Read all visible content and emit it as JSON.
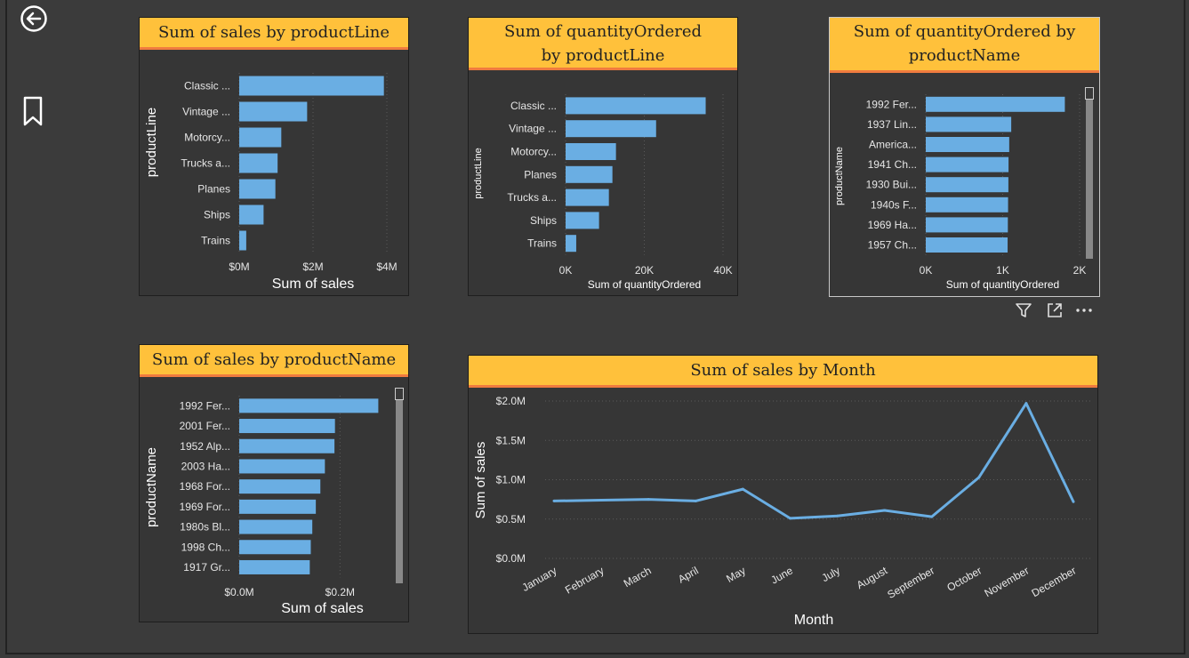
{
  "icons": {
    "back": "back-arrow-icon",
    "bookmark": "bookmark-icon",
    "filter": "filter-icon",
    "focus": "focus-mode-icon",
    "more": "more-options-icon"
  },
  "colors": {
    "bar": "#6aaee3",
    "title_bg": "#ffc13b",
    "title_border": "#f07b3f",
    "panel_bg": "#363636",
    "page_bg": "#3b3b3b"
  },
  "chart_data": [
    {
      "id": "c1",
      "type": "bar",
      "orientation": "horizontal",
      "title": "Sum of sales by productLine",
      "xlabel": "Sum of sales",
      "ylabel": "productLine",
      "categories": [
        "Classic ...",
        "Vintage ...",
        "Motorcy...",
        "Trucks a...",
        "Planes",
        "Ships",
        "Trains"
      ],
      "values": [
        3.92,
        1.84,
        1.14,
        1.04,
        0.98,
        0.66,
        0.19
      ],
      "xlim": [
        0,
        4
      ],
      "xticks": [
        0,
        2,
        4
      ],
      "xtick_labels": [
        "$0M",
        "$2M",
        "$4M"
      ]
    },
    {
      "id": "c2",
      "type": "bar",
      "orientation": "horizontal",
      "title": "Sum of quantityOrdered by productLine",
      "xlabel": "Sum of quantityOrdered",
      "ylabel": "productLine",
      "categories": [
        "Classic ...",
        "Vintage ...",
        "Motorcy...",
        "Planes",
        "Trucks a...",
        "Ships",
        "Trains"
      ],
      "values": [
        35600,
        23000,
        12800,
        11900,
        11000,
        8500,
        2700
      ],
      "xlim": [
        0,
        40000
      ],
      "xticks": [
        0,
        20000,
        40000
      ],
      "xtick_labels": [
        "0K",
        "20K",
        "40K"
      ]
    },
    {
      "id": "c3",
      "type": "bar",
      "orientation": "horizontal",
      "title": "Sum of quantityOrdered by productName",
      "xlabel": "Sum of quantityOrdered",
      "ylabel": "productName",
      "categories": [
        "1992 Fer...",
        "1937 Lin...",
        "America...",
        "1941 Ch...",
        "1930 Bui...",
        "1940s F...",
        "1969 Ha...",
        "1957 Ch..."
      ],
      "values": [
        1808,
        1111,
        1085,
        1076,
        1074,
        1070,
        1067,
        1064
      ],
      "xlim": [
        0,
        2000
      ],
      "xticks": [
        0,
        1000,
        2000
      ],
      "xtick_labels": [
        "0K",
        "1K",
        "2K"
      ]
    },
    {
      "id": "c4",
      "type": "bar",
      "orientation": "horizontal",
      "title": "Sum of sales by productName",
      "xlabel": "Sum of sales",
      "ylabel": "productName",
      "categories": [
        "1992 Fer...",
        "2001 Fer...",
        "1952 Alp...",
        "2003 Ha...",
        "1968 For...",
        "1969 For...",
        "1980s Bl...",
        "1998 Ch...",
        "1917 Gr..."
      ],
      "values": [
        0.276,
        0.19,
        0.189,
        0.17,
        0.161,
        0.152,
        0.145,
        0.142,
        0.14
      ],
      "xlim": [
        0,
        0.33
      ],
      "xticks": [
        0,
        0.2
      ],
      "xtick_labels": [
        "$0.0M",
        "$0.2M"
      ]
    },
    {
      "id": "c5",
      "type": "line",
      "title": "Sum of sales by Month",
      "xlabel": "Month",
      "ylabel": "Sum of sales",
      "x": [
        "January",
        "February",
        "March",
        "April",
        "May",
        "June",
        "July",
        "August",
        "September",
        "October",
        "November",
        "December"
      ],
      "values": [
        0.73,
        0.74,
        0.75,
        0.73,
        0.88,
        0.51,
        0.54,
        0.61,
        0.53,
        1.03,
        1.97,
        0.72
      ],
      "ylim": [
        0,
        2
      ],
      "yticks": [
        0,
        0.5,
        1,
        1.5,
        2
      ],
      "ytick_labels": [
        "$0.0M",
        "$0.5M",
        "$1.0M",
        "$1.5M",
        "$2.0M"
      ]
    }
  ]
}
